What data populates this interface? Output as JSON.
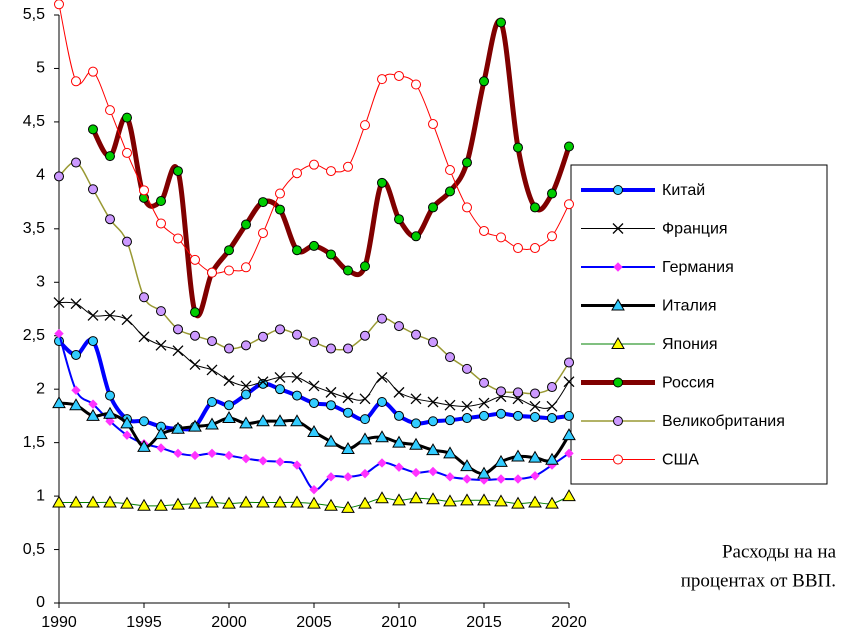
{
  "chart_data": {
    "type": "line",
    "x": [
      1990,
      1991,
      1992,
      1993,
      1994,
      1995,
      1996,
      1997,
      1998,
      1999,
      2000,
      2001,
      2002,
      2003,
      2004,
      2005,
      2006,
      2007,
      2008,
      2009,
      2010,
      2011,
      2012,
      2013,
      2014,
      2015,
      2016,
      2017,
      2018,
      2019,
      2020
    ],
    "xlim": [
      1990,
      2020
    ],
    "xticks": [
      1990,
      1995,
      2000,
      2005,
      2010,
      2015,
      2020
    ],
    "ylim": [
      0,
      5.5
    ],
    "yticks": [
      0,
      {
        "value": 0.5,
        "label": "0,5"
      },
      1,
      {
        "value": 1.5,
        "label": "1,5"
      },
      2,
      {
        "value": 2.5,
        "label": "2,5"
      },
      3,
      {
        "value": 3.5,
        "label": "3,5"
      },
      4,
      {
        "value": 4.5,
        "label": "4,5"
      },
      5,
      {
        "value": 5.5,
        "label": "5,5"
      }
    ],
    "legend": "right",
    "annotations": [
      "Расходы на на",
      "процентах от ВВП."
    ],
    "series": [
      {
        "name": "Китай",
        "color": "#0000ff",
        "marker": "circle",
        "marker_color": "#33ccff",
        "line_width": 4,
        "values": [
          2.45,
          2.32,
          2.45,
          1.94,
          1.72,
          1.7,
          1.65,
          1.63,
          1.65,
          1.88,
          1.85,
          1.95,
          2.05,
          2.0,
          1.94,
          1.87,
          1.85,
          1.78,
          1.72,
          1.88,
          1.75,
          1.68,
          1.7,
          1.71,
          1.73,
          1.75,
          1.77,
          1.75,
          1.74,
          1.73,
          1.75
        ]
      },
      {
        "name": "Франция",
        "color": "#000000",
        "marker": "x",
        "marker_color": "#000000",
        "line_width": 1,
        "values": [
          2.81,
          2.8,
          2.69,
          2.69,
          2.65,
          2.49,
          2.41,
          2.36,
          2.23,
          2.18,
          2.08,
          2.03,
          2.07,
          2.11,
          2.11,
          2.03,
          1.97,
          1.92,
          1.91,
          2.11,
          1.97,
          1.91,
          1.88,
          1.85,
          1.84,
          1.87,
          1.93,
          1.91,
          1.84,
          1.84,
          2.07
        ]
      },
      {
        "name": "Германия",
        "color": "#0000ff",
        "marker": "diamond",
        "marker_color": "#ff33ff",
        "line_width": 2,
        "values": [
          2.52,
          1.99,
          1.86,
          1.7,
          1.57,
          1.49,
          1.45,
          1.4,
          1.38,
          1.4,
          1.38,
          1.35,
          1.33,
          1.32,
          1.29,
          1.06,
          1.18,
          1.18,
          1.21,
          1.31,
          1.27,
          1.22,
          1.23,
          1.18,
          1.16,
          1.15,
          1.16,
          1.16,
          1.19,
          1.29,
          1.4
        ]
      },
      {
        "name": "Италия",
        "color": "#000000",
        "marker": "triangle",
        "marker_color": "#33ccff",
        "line_width": 3,
        "values": [
          1.87,
          1.85,
          1.75,
          1.77,
          1.68,
          1.46,
          1.58,
          1.63,
          1.65,
          1.67,
          1.73,
          1.68,
          1.7,
          1.7,
          1.7,
          1.6,
          1.51,
          1.44,
          1.53,
          1.55,
          1.5,
          1.48,
          1.43,
          1.4,
          1.28,
          1.21,
          1.32,
          1.37,
          1.36,
          1.34,
          1.57
        ]
      },
      {
        "name": "Япония",
        "color": "#008000",
        "marker": "triangle",
        "marker_color": "#ffff00",
        "line_width": 1,
        "values": [
          0.94,
          0.94,
          0.94,
          0.94,
          0.93,
          0.91,
          0.91,
          0.92,
          0.93,
          0.94,
          0.93,
          0.94,
          0.94,
          0.94,
          0.94,
          0.93,
          0.91,
          0.89,
          0.93,
          0.98,
          0.96,
          0.98,
          0.97,
          0.95,
          0.96,
          0.96,
          0.95,
          0.93,
          0.94,
          0.93,
          1.0
        ]
      },
      {
        "name": "Россия",
        "color": "#800000",
        "marker": "circle",
        "marker_color": "#00cc00",
        "line_width": 5,
        "values": [
          null,
          null,
          4.43,
          4.18,
          4.54,
          3.79,
          3.76,
          4.04,
          2.72,
          3.09,
          3.3,
          3.54,
          3.75,
          3.68,
          3.3,
          3.34,
          3.26,
          3.11,
          3.15,
          3.93,
          3.59,
          3.43,
          3.7,
          3.85,
          4.12,
          4.88,
          5.43,
          4.26,
          3.7,
          3.83,
          4.27
        ]
      },
      {
        "name": "Великобритания",
        "color": "#999933",
        "marker": "circle",
        "marker_color": "#cc99ff",
        "line_width": 1.5,
        "values": [
          3.99,
          4.12,
          3.87,
          3.59,
          3.38,
          2.86,
          2.73,
          2.56,
          2.5,
          2.45,
          2.38,
          2.41,
          2.49,
          2.56,
          2.51,
          2.44,
          2.38,
          2.38,
          2.5,
          2.66,
          2.59,
          2.51,
          2.44,
          2.3,
          2.19,
          2.06,
          1.98,
          1.97,
          1.96,
          2.02,
          2.25
        ]
      },
      {
        "name": "США",
        "color": "#ff0000",
        "marker": "circle",
        "marker_color": "#ffffff",
        "line_width": 1,
        "values": [
          5.6,
          4.88,
          4.97,
          4.61,
          4.21,
          3.86,
          3.55,
          3.41,
          3.21,
          3.09,
          3.11,
          3.14,
          3.46,
          3.83,
          4.02,
          4.1,
          4.04,
          4.08,
          4.47,
          4.9,
          4.93,
          4.85,
          4.48,
          4.05,
          3.7,
          3.48,
          3.42,
          3.32,
          3.32,
          3.43,
          3.73
        ]
      }
    ]
  }
}
